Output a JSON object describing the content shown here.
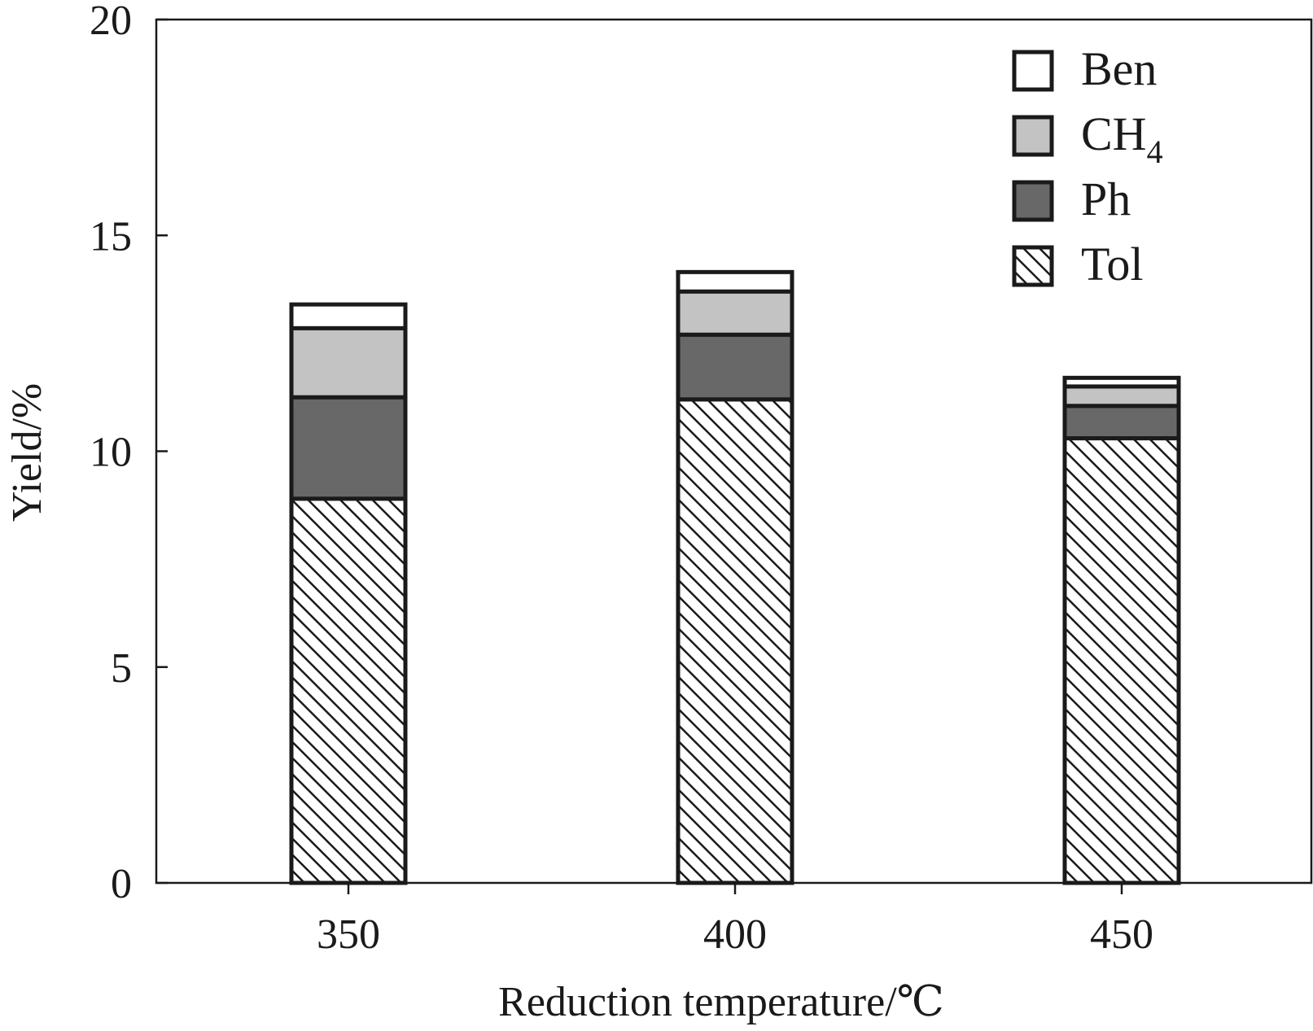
{
  "chart_data": {
    "type": "bar",
    "stacked": true,
    "title": "",
    "xlabel": "Reduction temperature/℃",
    "ylabel": "Yield/%",
    "ylim": [
      0,
      20
    ],
    "yticks": [
      0,
      5,
      10,
      15,
      20
    ],
    "categories": [
      "350",
      "400",
      "450"
    ],
    "series": [
      {
        "name": "Tol",
        "values": [
          8.9,
          11.2,
          10.3
        ]
      },
      {
        "name": "Ph",
        "values": [
          2.35,
          1.5,
          0.75
        ]
      },
      {
        "name": "CH4",
        "values": [
          1.6,
          1.0,
          0.45
        ]
      },
      {
        "name": "Ben",
        "values": [
          0.55,
          0.45,
          0.2
        ]
      }
    ],
    "legend": {
      "position": "top-right",
      "entries": [
        {
          "series": "Ben",
          "label": "Ben",
          "sub": ""
        },
        {
          "series": "CH4",
          "label": "CH",
          "sub": "4"
        },
        {
          "series": "Ph",
          "label": "Ph",
          "sub": ""
        },
        {
          "series": "Tol",
          "label": "Tol",
          "sub": ""
        }
      ]
    },
    "styles": {
      "Ben": {
        "fill": "#ffffff",
        "pattern": "none"
      },
      "CH4": {
        "fill": "#c3c3c3",
        "pattern": "none"
      },
      "Ph": {
        "fill": "#686868",
        "pattern": "none"
      },
      "Tol": {
        "fill": "#ffffff",
        "pattern": "hatch"
      }
    },
    "colors": {
      "outline": "#1a1a1a"
    }
  }
}
